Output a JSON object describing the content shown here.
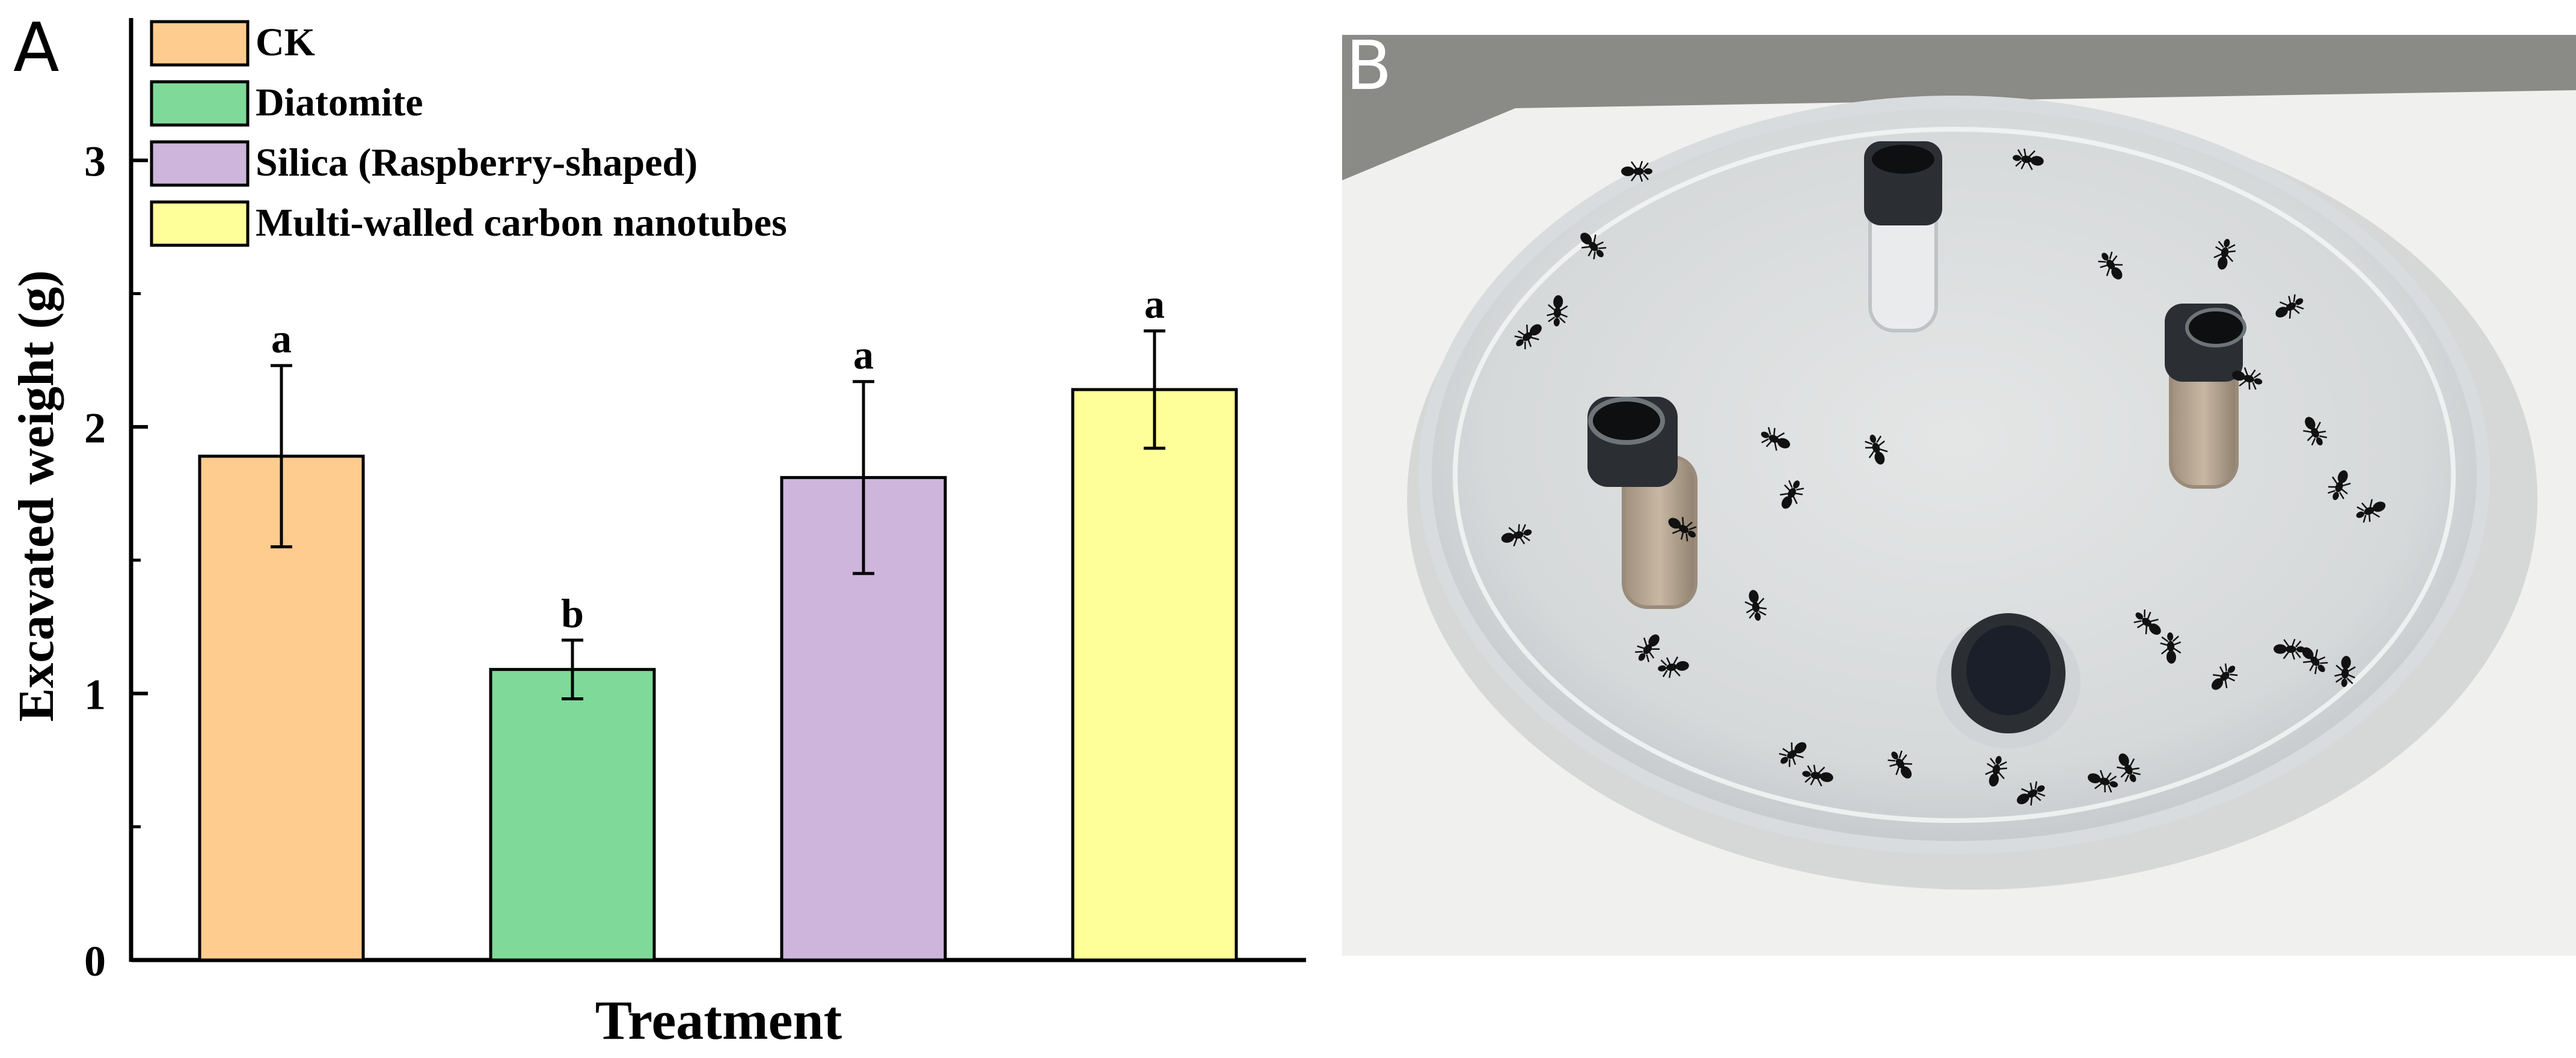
{
  "panels": {
    "a": {
      "letter": "A"
    },
    "b": {
      "letter": "B"
    }
  },
  "chart_data": {
    "type": "bar",
    "categories": [
      "CK",
      "Diatomite",
      "Silica (Raspberry-shaped)",
      "Multi-walled carbon nanotubes"
    ],
    "values": [
      1.89,
      1.09,
      1.81,
      2.14
    ],
    "errors": [
      0.34,
      0.11,
      0.36,
      0.22
    ],
    "significance": [
      "a",
      "b",
      "a",
      "a"
    ],
    "colors": [
      "#FFCC8F",
      "#7FD999",
      "#CDB5DB",
      "#FFFF99"
    ],
    "xlabel": "Treatment",
    "ylabel": "Excavated weight (g)",
    "ylim": [
      0,
      3.5
    ],
    "yticks": [
      0,
      1,
      2,
      3
    ],
    "legend": {
      "placement": "top-left",
      "entries": [
        "CK",
        "Diatomite",
        "Silica (Raspberry-shaped)",
        "Multi-walled carbon nanotubes"
      ]
    },
    "grid": false
  },
  "photo": {
    "background": "#8a8a86",
    "paper": "#f0f0ee",
    "dish_rim": "#d8dcde",
    "tube_cap": "#2b2f33",
    "ant": "#111111"
  }
}
